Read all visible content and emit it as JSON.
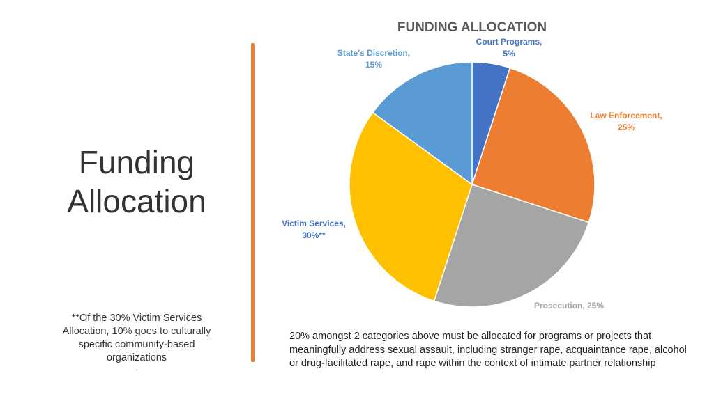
{
  "slide": {
    "title_line1": "Funding",
    "title_line2": "Allocation",
    "footnote_text": "**Of the 30% Victim Services Allocation, 10% goes to culturally specific community-based organizations",
    "footnote_trailer": ".",
    "requirement_text": "20% amongst 2 categories above must be allocated for programs or projects that meaningfully address sexual assault, including stranger rape, acquaintance rape, alcohol or drug-facilitated rape, and rape within the context of intimate partner relationship",
    "accent_color": "#ED7D31"
  },
  "chart_data": {
    "type": "pie",
    "title": "FUNDING ALLOCATION",
    "start_angle_deg": 0,
    "direction": "clockwise",
    "slices": [
      {
        "label_line1": "Court Programs,",
        "label_line2": "5%",
        "value": 5,
        "color": "#4472C4",
        "label_color": "#4472C4"
      },
      {
        "label_line1": "Law Enforcement,",
        "label_line2": "25%",
        "value": 25,
        "color": "#ED7D31",
        "label_color": "#ED7D31"
      },
      {
        "label_line1": "Prosecution, 25%",
        "label_line2": "",
        "value": 25,
        "color": "#A5A5A5",
        "label_color": "#A5A5A5"
      },
      {
        "label_line1": "Victim Services,",
        "label_line2": "30%**",
        "value": 30,
        "color": "#FFC000",
        "label_color": "#4472C4"
      },
      {
        "label_line1": "State's Discretion,",
        "label_line2": "15%",
        "value": 15,
        "color": "#5B9BD5",
        "label_color": "#5B9BD5"
      }
    ]
  }
}
